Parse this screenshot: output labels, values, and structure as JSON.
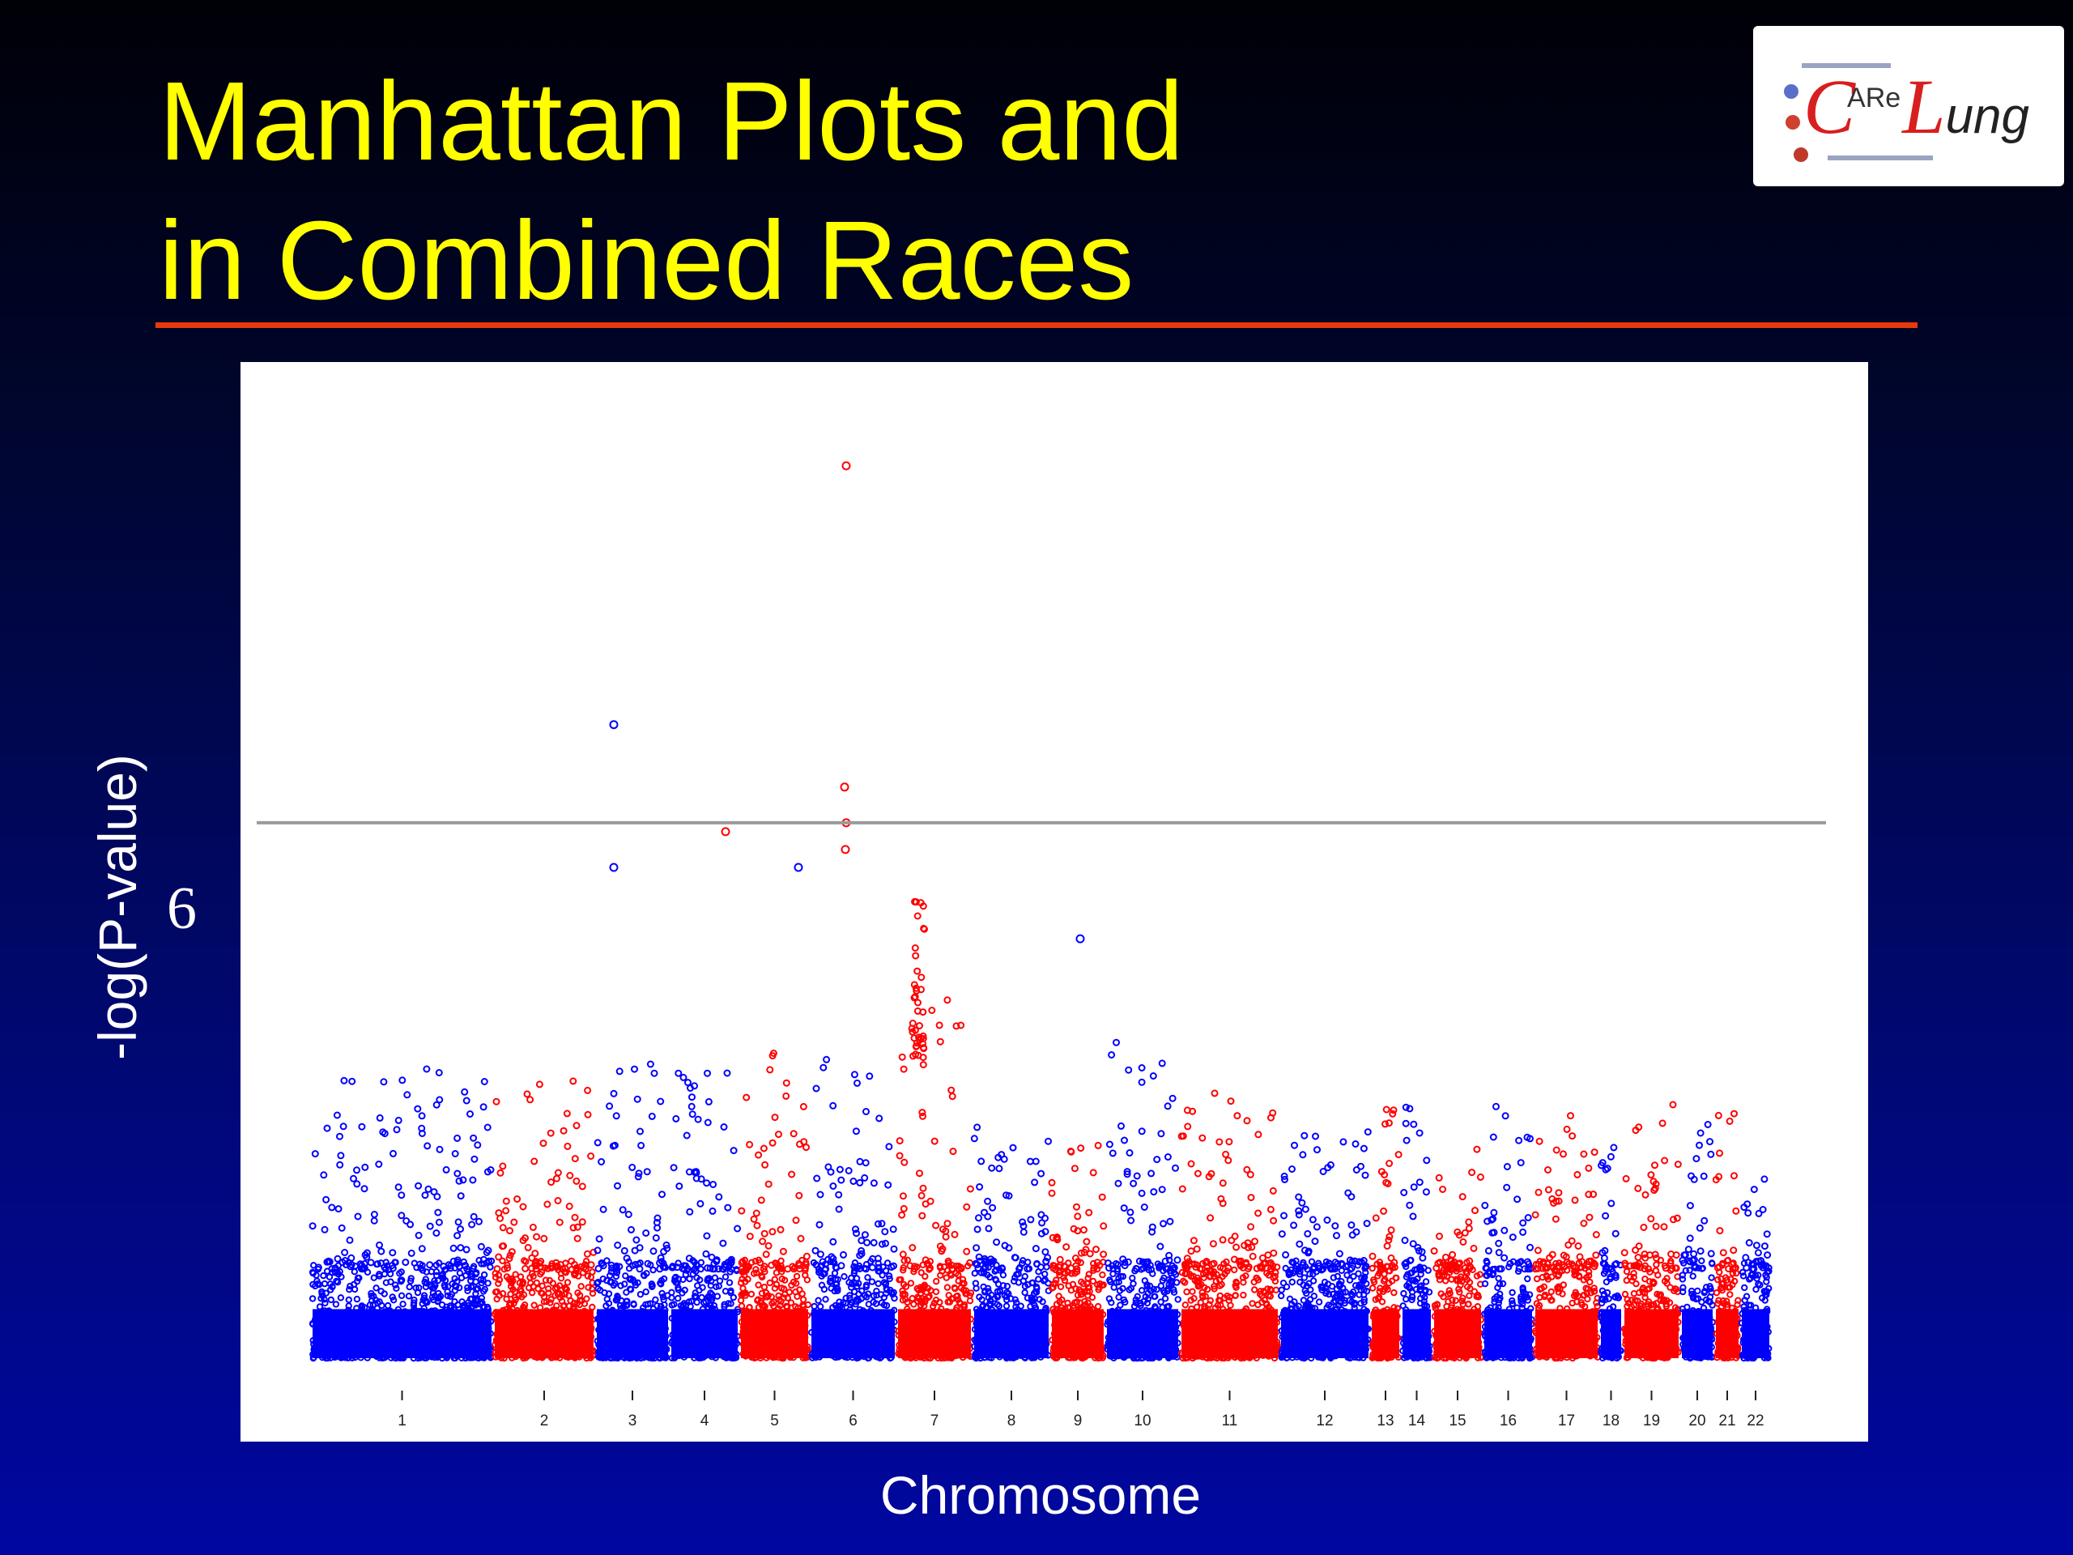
{
  "slide": {
    "title_line1": "Manhattan Plots and",
    "title_line2": "in Combined Races",
    "title_color": "#ffff00",
    "rule_color": "#e8390e"
  },
  "logo": {
    "c": "C",
    "are": "ARe",
    "l": "L",
    "ung": "ung"
  },
  "chart_data": {
    "type": "scatter",
    "xlabel": "Chromosome",
    "ylabel": "-log(P-value)",
    "y_tick_labels": [
      "6"
    ],
    "threshold": 6,
    "ylim": [
      0,
      10.8
    ],
    "series_colors": [
      "#0000ff",
      "#ff0000"
    ],
    "colors_alternate_by_chromosome": true,
    "grid": false,
    "legend": "none",
    "chromosomes": [
      {
        "label": "1",
        "color": "#0000ff",
        "peak": 3.3
      },
      {
        "label": "2",
        "color": "#ff0000",
        "peak": 3.2
      },
      {
        "label": "3",
        "color": "#0000ff",
        "peak": 3.3
      },
      {
        "label": "4",
        "color": "#0000ff",
        "peak": 3.2
      },
      {
        "label": "5",
        "color": "#ff0000",
        "peak": 3.5
      },
      {
        "label": "6",
        "color": "#0000ff",
        "peak": 3.4
      },
      {
        "label": "7",
        "color": "#ff0000",
        "peak": 4.1
      },
      {
        "label": "8",
        "color": "#0000ff",
        "peak": 2.6
      },
      {
        "label": "9",
        "color": "#ff0000",
        "peak": 2.4
      },
      {
        "label": "10",
        "color": "#0000ff",
        "peak": 3.6
      },
      {
        "label": "11",
        "color": "#ff0000",
        "peak": 3.0
      },
      {
        "label": "12",
        "color": "#0000ff",
        "peak": 2.7
      },
      {
        "label": "13",
        "color": "#ff0000",
        "peak": 2.9
      },
      {
        "label": "14",
        "color": "#0000ff",
        "peak": 2.9
      },
      {
        "label": "15",
        "color": "#ff0000",
        "peak": 2.9
      },
      {
        "label": "16",
        "color": "#0000ff",
        "peak": 2.9
      },
      {
        "label": "17",
        "color": "#ff0000",
        "peak": 2.9
      },
      {
        "label": "18",
        "color": "#0000ff",
        "peak": 2.6
      },
      {
        "label": "19",
        "color": "#ff0000",
        "peak": 2.9
      },
      {
        "label": "20",
        "color": "#0000ff",
        "peak": 2.8
      },
      {
        "label": "21",
        "color": "#ff0000",
        "peak": 2.9
      },
      {
        "label": "22",
        "color": "#0000ff",
        "peak": 2.2
      }
    ],
    "highlighted_points": [
      {
        "chromosome": "6",
        "y": 10.0,
        "color": "#ff0000"
      },
      {
        "chromosome": "6",
        "y": 6.4,
        "color": "#ff0000"
      },
      {
        "chromosome": "6",
        "y": 6.0,
        "color": "#ff0000"
      },
      {
        "chromosome": "6",
        "y": 5.7,
        "color": "#ff0000"
      },
      {
        "chromosome": "3",
        "y": 7.1,
        "color": "#0000ff"
      },
      {
        "chromosome": "3",
        "y": 5.5,
        "color": "#0000ff"
      },
      {
        "chromosome": "5",
        "y": 5.9,
        "color": "#ff0000"
      },
      {
        "chromosome": "6",
        "y": 5.5,
        "color": "#0000ff"
      },
      {
        "chromosome": "9",
        "y": 4.7,
        "color": "#0000ff"
      }
    ]
  }
}
